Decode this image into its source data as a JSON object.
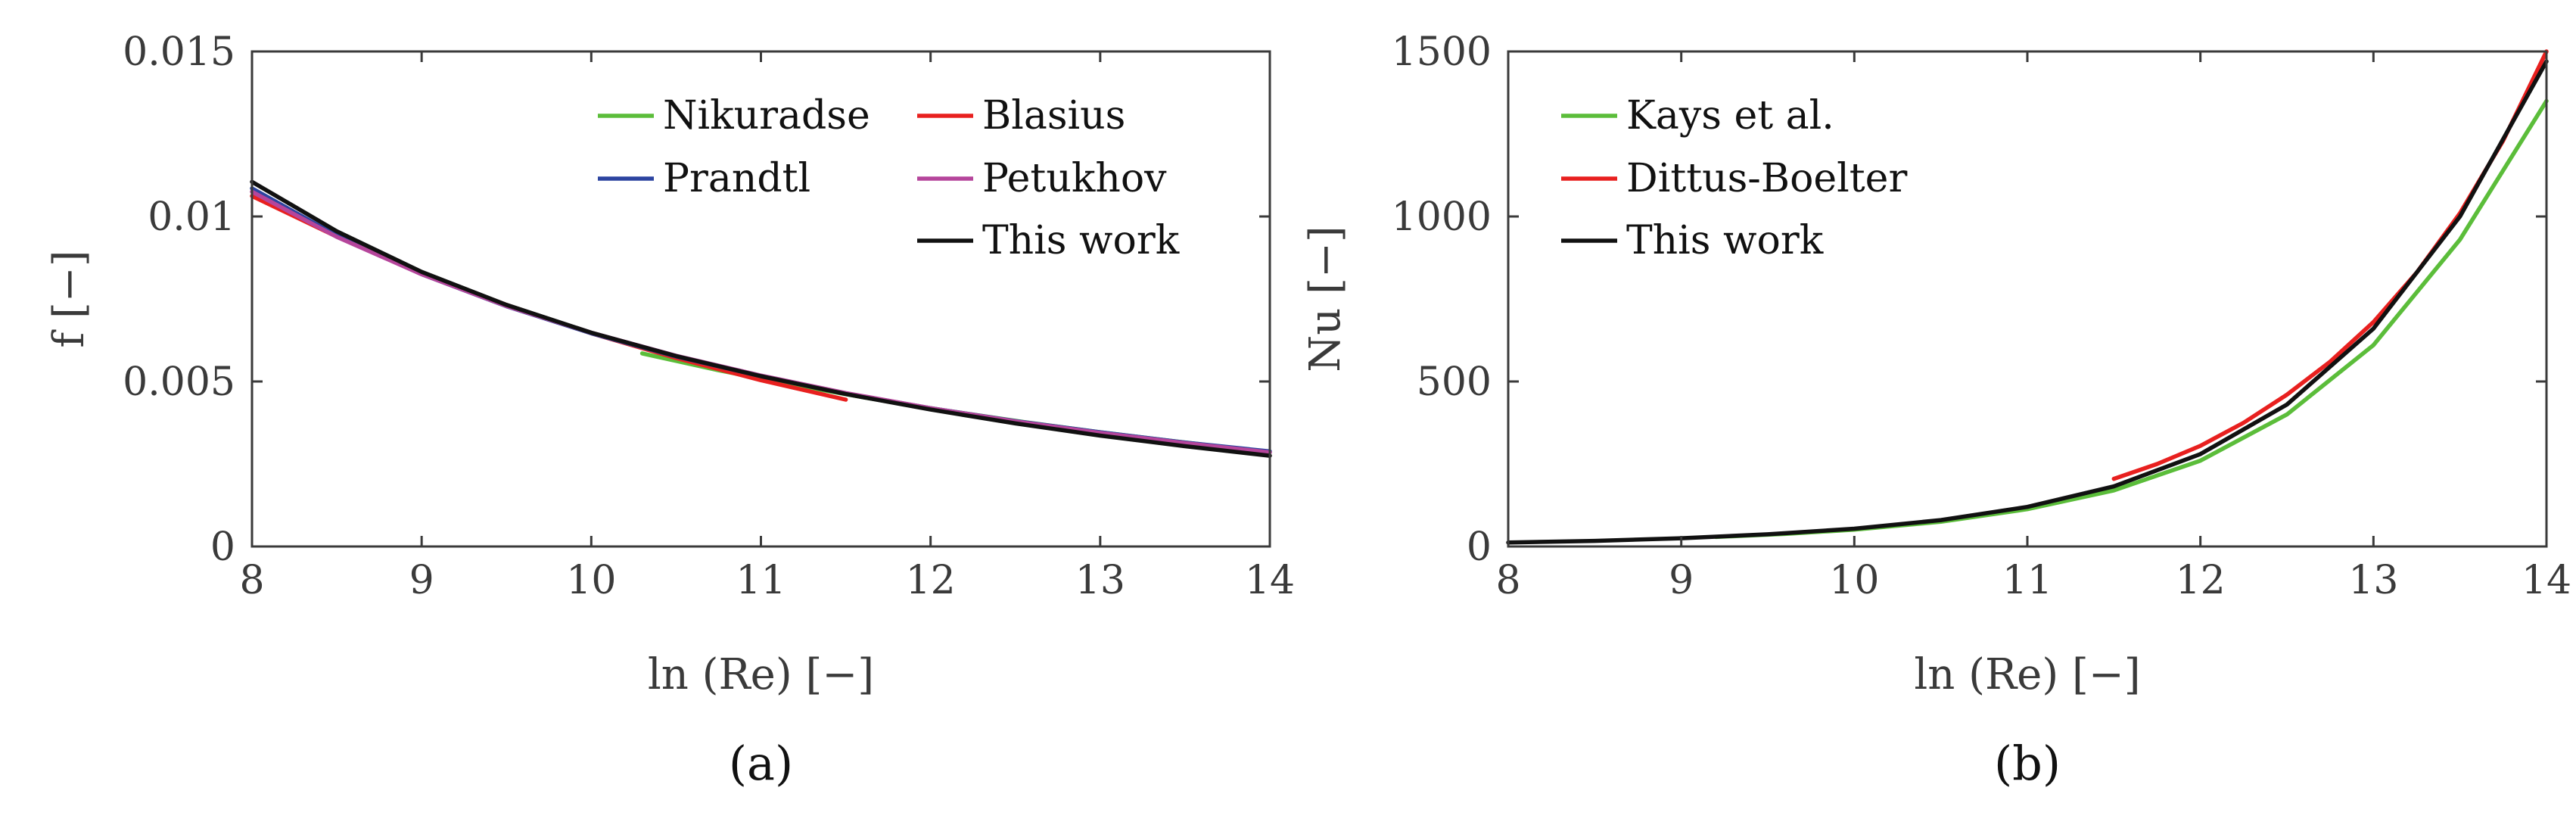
{
  "chart_data": [
    {
      "type": "line",
      "panel_label": "(a)",
      "xlabel": "ln (Re)  [−]",
      "ylabel": "f  [−]",
      "xlim": [
        8,
        14
      ],
      "ylim": [
        0,
        0.015
      ],
      "xticks": [
        8,
        9,
        10,
        11,
        12,
        13,
        14
      ],
      "yticks": [
        0,
        0.005,
        0.01,
        0.015
      ],
      "ytick_labels": [
        "0",
        "0.005",
        "0.01",
        "0.015"
      ],
      "grid": false,
      "legend_position": "top-right",
      "series": [
        {
          "name": "Nikuradse",
          "color": "#5bbd3a",
          "x": [
            10.3,
            10.75,
            11.2,
            11.65,
            12.1,
            12.55,
            13.0,
            13.4,
            13.8
          ],
          "y": [
            0.00585,
            0.00534,
            0.00489,
            0.00448,
            0.00411,
            0.00377,
            0.00346,
            0.00321,
            0.00297
          ]
        },
        {
          "name": "Blasius",
          "color": "#e8201f",
          "x": [
            8.0,
            8.5,
            9.0,
            9.5,
            10.0,
            10.5,
            11.0,
            11.5
          ],
          "y": [
            0.01062,
            0.00939,
            0.00829,
            0.00732,
            0.00646,
            0.00571,
            0.00504,
            0.00445
          ]
        },
        {
          "name": "Prandtl",
          "color": "#2c44a0",
          "x": [
            8.0,
            8.5,
            9.0,
            9.5,
            10.0,
            10.5,
            11.0,
            11.5,
            12.0,
            12.5,
            13.0,
            13.5,
            14.0
          ],
          "y": [
            0.01085,
            0.00942,
            0.00825,
            0.00728,
            0.00646,
            0.00576,
            0.00516,
            0.00464,
            0.00419,
            0.0038,
            0.00346,
            0.00315,
            0.00288
          ]
        },
        {
          "name": "Petukhov",
          "color": "#b5459b",
          "x": [
            8.0,
            8.5,
            9.0,
            9.5,
            10.0,
            10.5,
            11.0,
            11.5,
            12.0,
            12.5,
            13.0,
            13.5,
            14.0
          ],
          "y": [
            0.01075,
            0.00938,
            0.00825,
            0.00729,
            0.00648,
            0.00578,
            0.00518,
            0.00465,
            0.00419,
            0.00379,
            0.00344,
            0.00313,
            0.00285
          ]
        },
        {
          "name": "This work",
          "color": "#111111",
          "x": [
            8.0,
            8.5,
            9.0,
            9.5,
            10.0,
            10.5,
            11.0,
            11.5,
            12.0,
            12.5,
            13.0,
            13.5,
            14.0
          ],
          "y": [
            0.01105,
            0.00955,
            0.00832,
            0.00732,
            0.00648,
            0.00577,
            0.00516,
            0.00462,
            0.00415,
            0.00373,
            0.00336,
            0.00304,
            0.00275
          ]
        }
      ],
      "legend": [
        {
          "name": "Nikuradse",
          "color": "#5bbd3a",
          "col": 0,
          "row": 0
        },
        {
          "name": "Blasius",
          "color": "#e8201f",
          "col": 1,
          "row": 0
        },
        {
          "name": "Prandtl",
          "color": "#2c44a0",
          "col": 0,
          "row": 1
        },
        {
          "name": "Petukhov",
          "color": "#b5459b",
          "col": 1,
          "row": 1
        },
        {
          "name": "This work",
          "color": "#111111",
          "col": 1,
          "row": 2
        }
      ]
    },
    {
      "type": "line",
      "panel_label": "(b)",
      "xlabel": "ln (Re)  [−]",
      "ylabel": "Nu  [−]",
      "xlim": [
        8,
        14
      ],
      "ylim": [
        0,
        1500
      ],
      "xticks": [
        8,
        9,
        10,
        11,
        12,
        13,
        14
      ],
      "yticks": [
        0,
        500,
        1000,
        1500
      ],
      "ytick_labels": [
        "0",
        "500",
        "1000",
        "1500"
      ],
      "grid": false,
      "legend_position": "top-left",
      "series": [
        {
          "name": "Kays et al.",
          "color": "#5bbd3a",
          "x": [
            9.2,
            9.6,
            10.0,
            10.5,
            11.0,
            11.5,
            12.0,
            12.5,
            13.0,
            13.5,
            14.0
          ],
          "y": [
            29,
            38,
            51,
            75,
            113,
            170,
            260,
            400,
            610,
            930,
            1350
          ]
        },
        {
          "name": "Dittus-Boelter",
          "color": "#e8201f",
          "x": [
            11.5,
            11.75,
            12.0,
            12.25,
            12.5,
            12.75,
            13.0,
            13.25,
            13.5,
            13.75,
            14.0
          ],
          "y": [
            205,
            250,
            305,
            375,
            460,
            560,
            680,
            830,
            1010,
            1230,
            1500
          ]
        },
        {
          "name": "This work",
          "color": "#111111",
          "x": [
            8.0,
            8.5,
            9.0,
            9.5,
            10.0,
            10.5,
            11.0,
            11.5,
            12.0,
            12.5,
            13.0,
            13.5,
            14.0
          ],
          "y": [
            12,
            17,
            25,
            37,
            54,
            80,
            120,
            182,
            280,
            430,
            660,
            1000,
            1470
          ]
        }
      ],
      "legend": [
        {
          "name": "Kays et al.",
          "color": "#5bbd3a",
          "col": 0,
          "row": 0
        },
        {
          "name": "Dittus-Boelter",
          "color": "#e8201f",
          "col": 0,
          "row": 1
        },
        {
          "name": "This work",
          "color": "#111111",
          "col": 0,
          "row": 2
        }
      ]
    }
  ]
}
